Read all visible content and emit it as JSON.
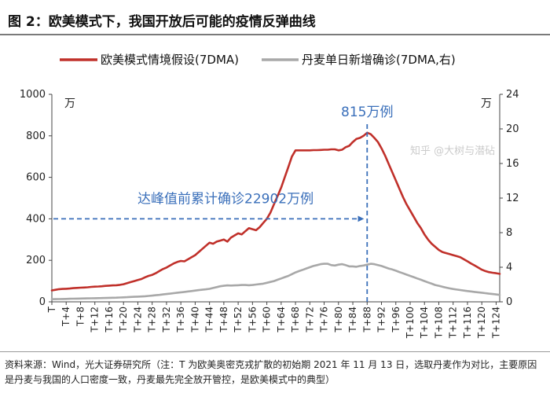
{
  "figure": {
    "title": "图 2：欧美模式下，我国开放后可能的疫情反弹曲线",
    "source": "资料来源：Wind，光大证券研究所（注：T 为欧美奥密克戎扩散的初始期 2021 年 11 月 13 日，选取丹麦作为对比，主要原因是丹麦与我国的人口密度一致，丹麦最先完全放开管控，是欧美模式中的典型）",
    "watermark": "知乎 @大树与潜砧"
  },
  "chart_data": {
    "type": "line",
    "x": [
      "T",
      "T+1",
      "T+2",
      "T+3",
      "T+4",
      "T+5",
      "T+6",
      "T+7",
      "T+8",
      "T+9",
      "T+10",
      "T+11",
      "T+12",
      "T+13",
      "T+14",
      "T+15",
      "T+16",
      "T+17",
      "T+18",
      "T+19",
      "T+20",
      "T+21",
      "T+22",
      "T+23",
      "T+24",
      "T+25",
      "T+26",
      "T+27",
      "T+28",
      "T+29",
      "T+30",
      "T+31",
      "T+32",
      "T+33",
      "T+34",
      "T+35",
      "T+36",
      "T+37",
      "T+38",
      "T+39",
      "T+40",
      "T+41",
      "T+42",
      "T+43",
      "T+44",
      "T+45",
      "T+46",
      "T+47",
      "T+48",
      "T+49",
      "T+50",
      "T+51",
      "T+52",
      "T+53",
      "T+54",
      "T+55",
      "T+56",
      "T+57",
      "T+58",
      "T+59",
      "T+60",
      "T+61",
      "T+62",
      "T+63",
      "T+64",
      "T+65",
      "T+66",
      "T+67",
      "T+68",
      "T+69",
      "T+70",
      "T+71",
      "T+72",
      "T+73",
      "T+74",
      "T+75",
      "T+76",
      "T+77",
      "T+78",
      "T+79",
      "T+80",
      "T+81",
      "T+82",
      "T+83",
      "T+84",
      "T+85",
      "T+86",
      "T+87",
      "T+88",
      "T+89",
      "T+90",
      "T+91",
      "T+92",
      "T+93",
      "T+94",
      "T+95",
      "T+96",
      "T+97",
      "T+98",
      "T+99",
      "T+100",
      "T+101",
      "T+102",
      "T+103",
      "T+104",
      "T+105",
      "T+106",
      "T+107",
      "T+108",
      "T+109",
      "T+110",
      "T+111",
      "T+112",
      "T+113",
      "T+114",
      "T+115",
      "T+116",
      "T+117",
      "T+118",
      "T+119",
      "T+120",
      "T+121",
      "T+122",
      "T+123",
      "T+124",
      "T+125"
    ],
    "x_tick_labels": [
      "T",
      "T+4",
      "T+8",
      "T+12",
      "T+16",
      "T+20",
      "T+24",
      "T+28",
      "T+32",
      "T+36",
      "T+40",
      "T+44",
      "T+48",
      "T+52",
      "T+56",
      "T+60",
      "T+64",
      "T+68",
      "T+72",
      "T+76",
      "T+80",
      "T+84",
      "T+88",
      "T+92",
      "T+96",
      "T+100",
      "T+104",
      "T+108",
      "T+112",
      "T+116",
      "T+120",
      "T+124"
    ],
    "series": [
      {
        "name": "欧美模式情境假设(7DMA)",
        "axis": "left",
        "color": "#c0302a",
        "values": [
          55,
          58,
          61,
          62,
          63,
          64,
          66,
          67,
          68,
          69,
          70,
          72,
          73,
          74,
          75,
          77,
          78,
          79,
          80,
          82,
          85,
          90,
          95,
          100,
          105,
          110,
          118,
          125,
          130,
          138,
          148,
          158,
          165,
          175,
          185,
          192,
          197,
          195,
          205,
          215,
          225,
          240,
          255,
          270,
          285,
          280,
          290,
          295,
          300,
          290,
          310,
          320,
          330,
          325,
          340,
          355,
          350,
          345,
          360,
          380,
          400,
          430,
          470,
          510,
          550,
          600,
          650,
          700,
          730,
          730,
          730,
          730,
          730,
          731,
          731,
          732,
          733,
          733,
          735,
          735,
          730,
          733,
          745,
          752,
          770,
          785,
          790,
          800,
          815,
          808,
          790,
          770,
          740,
          705,
          665,
          625,
          585,
          545,
          505,
          470,
          440,
          410,
          380,
          355,
          325,
          300,
          280,
          265,
          250,
          240,
          235,
          230,
          225,
          220,
          215,
          205,
          195,
          185,
          175,
          165,
          155,
          148,
          143,
          140,
          138,
          135
        ]
      },
      {
        "name": "丹麦单日新增确诊(7DMA,右)",
        "axis": "right",
        "color": "#a8a8a8",
        "values": [
          0.3,
          0.31,
          0.32,
          0.33,
          0.34,
          0.35,
          0.36,
          0.37,
          0.38,
          0.39,
          0.4,
          0.41,
          0.42,
          0.43,
          0.44,
          0.45,
          0.46,
          0.47,
          0.48,
          0.5,
          0.52,
          0.54,
          0.56,
          0.58,
          0.6,
          0.62,
          0.65,
          0.68,
          0.72,
          0.76,
          0.8,
          0.85,
          0.9,
          0.95,
          1.0,
          1.05,
          1.1,
          1.15,
          1.2,
          1.25,
          1.3,
          1.35,
          1.4,
          1.45,
          1.5,
          1.6,
          1.7,
          1.8,
          1.85,
          1.9,
          1.88,
          1.9,
          1.92,
          1.95,
          1.95,
          1.92,
          1.95,
          2.0,
          2.05,
          2.1,
          2.2,
          2.3,
          2.4,
          2.55,
          2.7,
          2.85,
          3.0,
          3.2,
          3.4,
          3.55,
          3.7,
          3.85,
          4.0,
          4.15,
          4.25,
          4.35,
          4.4,
          4.4,
          4.25,
          4.2,
          4.3,
          4.35,
          4.25,
          4.1,
          4.1,
          4.05,
          4.15,
          4.2,
          4.3,
          4.4,
          4.35,
          4.25,
          4.15,
          4.0,
          3.85,
          3.75,
          3.6,
          3.45,
          3.3,
          3.15,
          3.0,
          2.85,
          2.7,
          2.55,
          2.4,
          2.25,
          2.1,
          1.95,
          1.85,
          1.75,
          1.65,
          1.55,
          1.48,
          1.42,
          1.36,
          1.3,
          1.25,
          1.2,
          1.15,
          1.1,
          1.05,
          1.0,
          0.95,
          0.9,
          0.85,
          0.8
        ]
      }
    ],
    "yleft": {
      "ylim": [
        0,
        1000
      ],
      "ticks": [
        0,
        200,
        400,
        600,
        800,
        1000
      ],
      "unit": "万"
    },
    "yright": {
      "ylim": [
        0,
        24
      ],
      "ticks": [
        0,
        4,
        8,
        12,
        16,
        20,
        24
      ],
      "unit": "万"
    },
    "legend": {
      "placement": "top"
    },
    "annotations": [
      {
        "text": "815万例",
        "x_index": 88,
        "y": 815,
        "style": "vertical-dashed"
      },
      {
        "text": "达峰值前累计确诊22902万例",
        "y": 400,
        "to_x_index": 88,
        "style": "horizontal-arrow"
      }
    ]
  }
}
